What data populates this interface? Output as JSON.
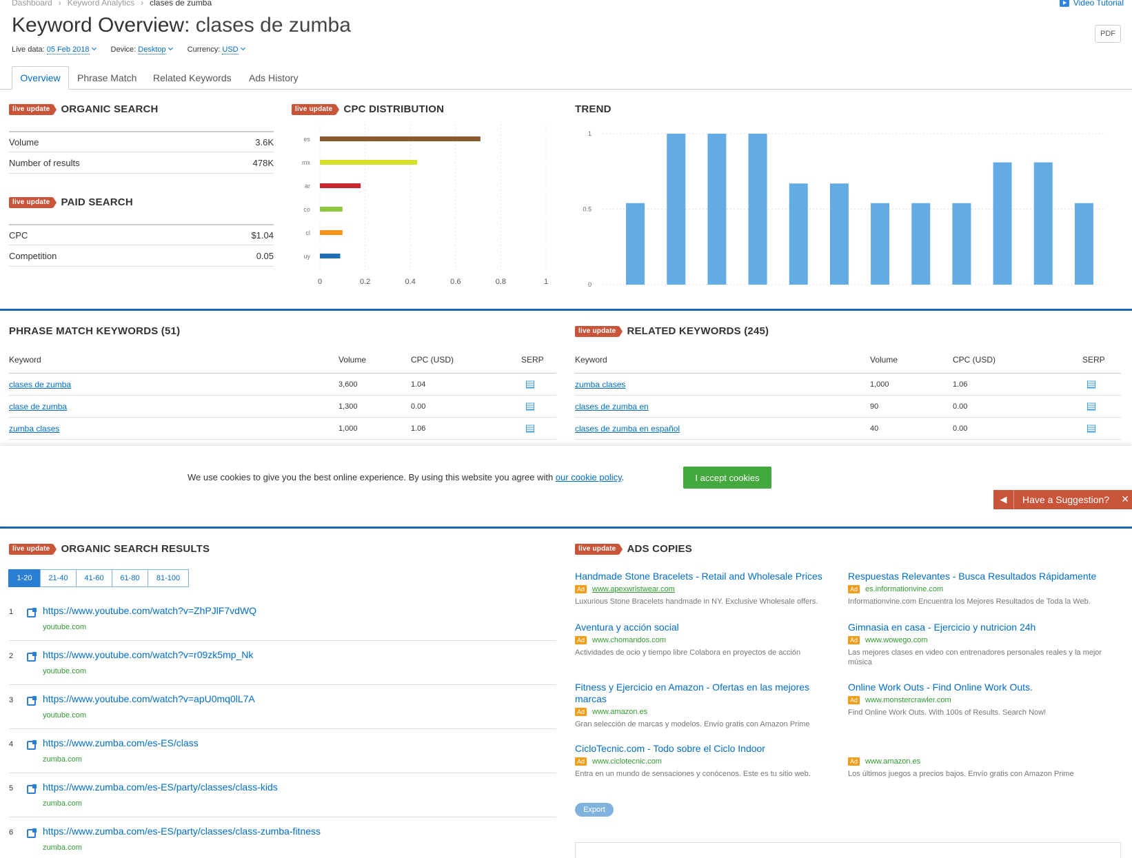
{
  "breadcrumb": [
    "Dashboard",
    "Keyword Analytics",
    "clases de zumba"
  ],
  "video_tutorial": "Video Tutorial",
  "title": {
    "prefix": "Keyword Overview:",
    "keyword": "clases de zumba"
  },
  "pdf_label": "PDF",
  "meta": {
    "live_label": "Live data:",
    "live_value": "05 Feb 2018",
    "device_label": "Device:",
    "device_value": "Desktop",
    "currency_label": "Currency:",
    "currency_value": "USD"
  },
  "tabs": [
    "Overview",
    "Phrase Match",
    "Related Keywords",
    "Ads History"
  ],
  "badge": "live update",
  "organic": {
    "title": "ORGANIC SEARCH",
    "rows": [
      {
        "label": "Volume",
        "value": "3.6K"
      },
      {
        "label": "Number of results",
        "value": "478K"
      }
    ]
  },
  "paid": {
    "title": "PAID SEARCH",
    "rows": [
      {
        "label": "CPC",
        "value": "$1.04"
      },
      {
        "label": "Competition",
        "value": "0.05"
      }
    ]
  },
  "cpc": {
    "title": "CPC DISTRIBUTION",
    "chart_data": {
      "type": "bar",
      "orientation": "horizontal",
      "categories": [
        "es",
        "mx",
        "ar",
        "co",
        "cl",
        "uy"
      ],
      "values": [
        0.71,
        0.43,
        0.18,
        0.1,
        0.1,
        0.09
      ],
      "colors": [
        "#8b5a2b",
        "#d6e02a",
        "#c8272f",
        "#8ec63f",
        "#f7941d",
        "#1f6fb5"
      ],
      "xticks": [
        "0",
        "0.2",
        "0.4",
        "0.6",
        "0.8",
        "1"
      ],
      "xlim": [
        0,
        1
      ]
    }
  },
  "trend": {
    "title": "TREND",
    "chart_data": {
      "type": "bar",
      "values": [
        0.54,
        1,
        1,
        1,
        0.67,
        0.67,
        0.54,
        0.54,
        0.54,
        0.81,
        0.81,
        0.54
      ],
      "yticks": [
        "1",
        "0.5",
        "0"
      ],
      "ylim": [
        0,
        1
      ],
      "color": "#63ace3"
    }
  },
  "phrase": {
    "title": "PHRASE MATCH KEYWORDS (51)",
    "headers": [
      "Keyword",
      "Volume",
      "CPC (USD)",
      "SERP"
    ],
    "rows": [
      {
        "kw": "clases de zumba",
        "vol": "3,600",
        "cpc": "1.04"
      },
      {
        "kw": "clase de zumba",
        "vol": "1,300",
        "cpc": "0.00"
      },
      {
        "kw": "zumba clases",
        "vol": "1,000",
        "cpc": "1.06"
      }
    ]
  },
  "related": {
    "title": "RELATED KEYWORDS (245)",
    "headers": [
      "Keyword",
      "Volume",
      "CPC (USD)",
      "SERP"
    ],
    "rows": [
      {
        "kw": "zumba clases",
        "vol": "1,000",
        "cpc": "1.06"
      },
      {
        "kw": "clases de zumba en",
        "vol": "90",
        "cpc": "0.00"
      },
      {
        "kw": "clases de zumba en español",
        "vol": "40",
        "cpc": "0.00"
      }
    ]
  },
  "cookie": {
    "text": "We use cookies to give you the best online experience. By using this website you agree with ",
    "link": "our cookie policy",
    "after": ".",
    "button": "I accept cookies"
  },
  "suggestion": "Have a Suggestion?",
  "organic_results": {
    "title": "ORGANIC SEARCH RESULTS",
    "pages": [
      "1-20",
      "21-40",
      "41-60",
      "61-80",
      "81-100"
    ],
    "items": [
      {
        "n": "1",
        "url": "https://www.youtube.com/watch?v=ZhPJlF7vdWQ",
        "domain": "youtube.com"
      },
      {
        "n": "2",
        "url": "https://www.youtube.com/watch?v=r09zk5mp_Nk",
        "domain": "youtube.com"
      },
      {
        "n": "3",
        "url": "https://www.youtube.com/watch?v=apU0mq0lL7A",
        "domain": "youtube.com"
      },
      {
        "n": "4",
        "url": "https://www.zumba.com/es-ES/class",
        "domain": "zumba.com"
      },
      {
        "n": "5",
        "url": "https://www.zumba.com/es-ES/party/classes/class-kids",
        "domain": "zumba.com"
      },
      {
        "n": "6",
        "url": "https://www.zumba.com/es-ES/party/classes/class-zumba-fitness",
        "domain": "zumba.com"
      }
    ]
  },
  "ads": {
    "title": "ADS COPIES",
    "ad_tag": "Ad",
    "items": [
      {
        "title": "Handmade Stone Bracelets - Retail and Wholesale Prices",
        "url": "www.apexwristwear.com",
        "desc": "Luxurious Stone Bracelets handmade in NY. Exclusive Wholesale offers."
      },
      {
        "title": "Respuestas Relevantes - Busca Resultados Rápidamente",
        "url": "es.informationvine.com",
        "desc": "Informationvine.com Encuentra los Mejores Resultados de Toda la Web."
      },
      {
        "title": "Aventura y acción social",
        "url": "www.chomandos.com",
        "desc": "Actividades de ocio y tiempo libre Colabora en proyectos de acción"
      },
      {
        "title": "Gimnasia en casa - Ejercicio y nutricion 24h",
        "url": "www.wowego.com",
        "desc": "Las mejores clases en video con entrenadores personales reales y la mejor música"
      },
      {
        "title": "Fitness y Ejercicio en Amazon - Ofertas en las mejores marcas",
        "url": "www.amazon.es",
        "desc": "Gran selección de marcas y modelos. Envío gratis con Amazon Prime"
      },
      {
        "title": "Online Work Outs - Find Online Work Outs.",
        "url": "www.monstercrawler.com",
        "desc": "Find Online Work Outs. With 100s of Results. Search Now!"
      },
      {
        "title": "CicloTecnic.com - Todo sobre el Ciclo Indoor",
        "url": "www.ciclotecnic.com",
        "desc": "Entra en un mundo de sensaciones y conócenos. Este es tu sitio web."
      },
      {
        "title": "",
        "url": "www.amazon.es",
        "desc": "Los últimos juegos a precios bajos. Envío gratis con Amazon Prime"
      }
    ],
    "export": "Export"
  }
}
